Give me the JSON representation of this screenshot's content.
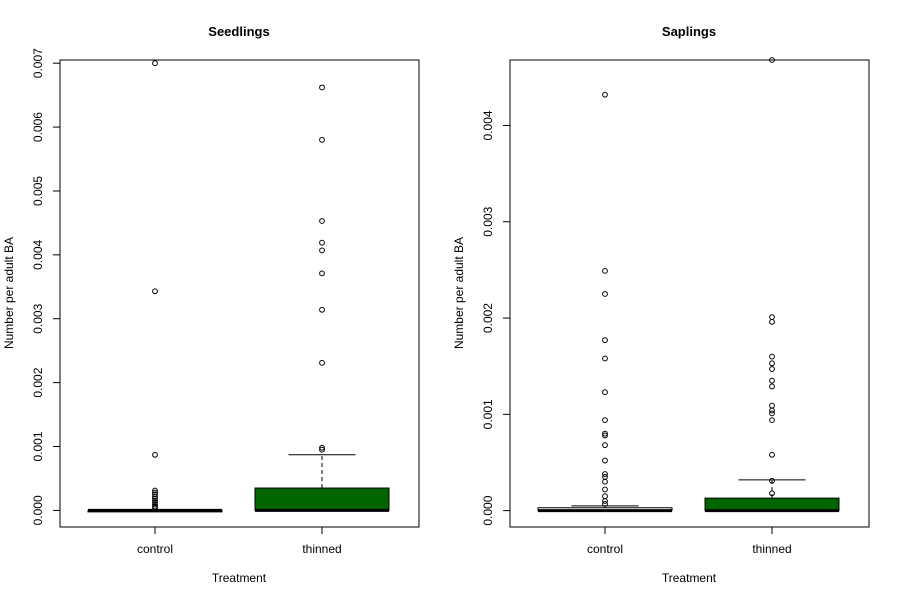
{
  "chart_data": [
    {
      "type": "boxplot",
      "title": "Seedlings",
      "xlabel": "Treatment",
      "ylabel": "Number per adult BA",
      "ylim": [
        -0.00026,
        0.00705
      ],
      "yticks": [
        "0.000",
        "0.001",
        "0.002",
        "0.003",
        "0.004",
        "0.005",
        "0.006",
        "0.007"
      ],
      "categories": [
        "control",
        "thinned"
      ],
      "colors": [
        "#ffffff",
        "#006400"
      ],
      "boxes": [
        {
          "category": "control",
          "min": 0,
          "q1": 0,
          "median": 0,
          "q3": 0,
          "max": 0,
          "outliers": [
            0.007,
            0.00343,
            0.00087,
            0.00031,
            0.00028,
            0.00025,
            0.00021,
            0.00018,
            0.00015,
            0.00012,
            9e-05,
            6e-05,
            4e-05
          ]
        },
        {
          "category": "thinned",
          "min": 0,
          "q1": 0,
          "median": 0,
          "q3": 0.00035,
          "max": 0.00087,
          "outliers": [
            0.00662,
            0.0058,
            0.00453,
            0.00419,
            0.00407,
            0.00371,
            0.00314,
            0.00231,
            0.00098,
            0.00095
          ]
        }
      ]
    },
    {
      "type": "boxplot",
      "title": "Saplings",
      "xlabel": "Treatment",
      "ylabel": "Number per adult BA",
      "ylim": [
        -0.00017,
        0.00468
      ],
      "yticks": [
        "0.000",
        "0.001",
        "0.002",
        "0.003",
        "0.004"
      ],
      "categories": [
        "control",
        "thinned"
      ],
      "colors": [
        "#ffffff",
        "#006400"
      ],
      "boxes": [
        {
          "category": "control",
          "min": 0,
          "q1": 0,
          "median": 0,
          "q3": 3e-05,
          "max": 5e-05,
          "outliers": [
            0.00432,
            0.00249,
            0.00225,
            0.00177,
            0.00158,
            0.00123,
            0.00094,
            0.0008,
            0.00078,
            0.00068,
            0.00052,
            0.00038,
            0.00035,
            0.0003,
            0.00022,
            0.00015,
            0.0001,
            7e-05
          ]
        },
        {
          "category": "thinned",
          "min": 0,
          "q1": 0,
          "median": 0,
          "q3": 0.00013,
          "max": 0.00032,
          "outliers": [
            0.00468,
            0.00201,
            0.00196,
            0.0016,
            0.00153,
            0.00147,
            0.00135,
            0.00129,
            0.00109,
            0.00104,
            0.00101,
            0.00094,
            0.00058,
            0.00031,
            0.00018
          ]
        }
      ]
    }
  ]
}
